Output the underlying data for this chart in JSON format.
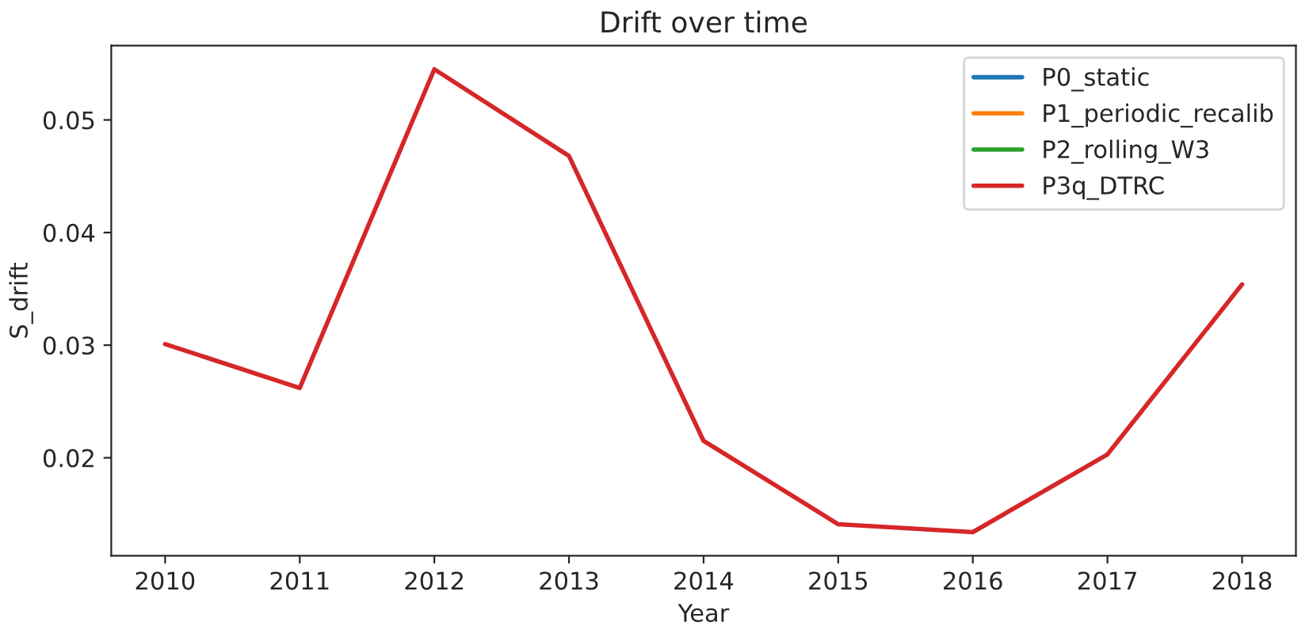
{
  "chart_data": {
    "type": "line",
    "title": "Drift over time",
    "xlabel": "Year",
    "ylabel": "S_drift",
    "x": [
      2010,
      2011,
      2012,
      2013,
      2014,
      2015,
      2016,
      2017,
      2018
    ],
    "series": [
      {
        "name": "P0_static",
        "color": "#1f77b4",
        "values": [
          null,
          null,
          null,
          null,
          null,
          null,
          null,
          null,
          null
        ]
      },
      {
        "name": "P1_periodic_recalib",
        "color": "#ff7f0e",
        "values": [
          null,
          null,
          null,
          null,
          null,
          null,
          null,
          null,
          null
        ]
      },
      {
        "name": "P2_rolling_W3",
        "color": "#2ca02c",
        "values": [
          null,
          null,
          null,
          null,
          null,
          null,
          null,
          null,
          null
        ]
      },
      {
        "name": "P3q_DTRC",
        "color": "#d62728",
        "values": [
          0.0301,
          0.0262,
          0.0545,
          0.0468,
          0.0215,
          0.0141,
          0.0134,
          0.0203,
          0.0354
        ]
      }
    ],
    "xlim": [
      2009.6,
      2018.4
    ],
    "xticks": [
      2010,
      2011,
      2012,
      2013,
      2014,
      2015,
      2016,
      2017,
      2018
    ],
    "ylim": [
      0.0113,
      0.0566
    ],
    "yticks": [
      {
        "value": 0.02,
        "label": "0.02"
      },
      {
        "value": 0.03,
        "label": "0.03"
      },
      {
        "value": 0.04,
        "label": "0.04"
      },
      {
        "value": 0.05,
        "label": "0.05"
      }
    ],
    "legend": "top right",
    "grid": false,
    "line_style": "solid",
    "marker": "none"
  }
}
